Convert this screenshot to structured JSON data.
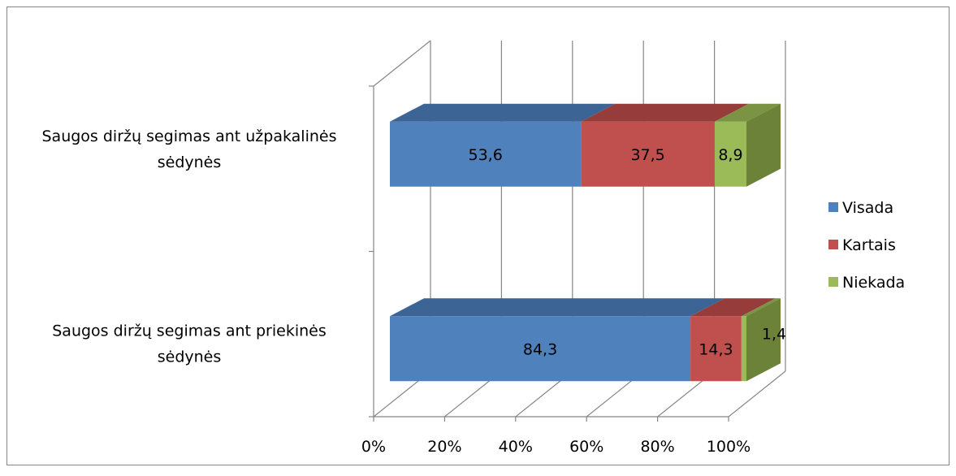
{
  "chart_data": {
    "type": "bar",
    "orientation": "horizontal",
    "stacked": "percent",
    "three_d": true,
    "categories": [
      [
        "Saugos diržų segimas ant priekinės",
        "sėdynės"
      ],
      [
        "Saugos diržų segimas ant užpakalinės",
        "sėdynės"
      ]
    ],
    "series": [
      {
        "name": "Visada",
        "values": [
          84.3,
          53.6
        ],
        "labels": [
          "84,3",
          "53,6"
        ],
        "color": "#4F81BD",
        "top_color": "#3C6494",
        "side_color": "#385D8A"
      },
      {
        "name": "Kartais",
        "values": [
          14.3,
          37.5
        ],
        "labels": [
          "14,3",
          "37,5"
        ],
        "color": "#C0504D",
        "top_color": "#963C3A",
        "side_color": "#8C3836"
      },
      {
        "name": "Niekada",
        "values": [
          1.4,
          8.9
        ],
        "labels": [
          "1,4",
          "8,9"
        ],
        "color": "#9BBB59",
        "top_color": "#7A9444",
        "side_color": "#6B8238"
      }
    ],
    "x_ticks": [
      "0%",
      "20%",
      "40%",
      "60%",
      "80%",
      "100%"
    ],
    "xlim": [
      0,
      100
    ],
    "grid": true,
    "legend_position": "right",
    "title": "",
    "xlabel": "",
    "ylabel": ""
  }
}
